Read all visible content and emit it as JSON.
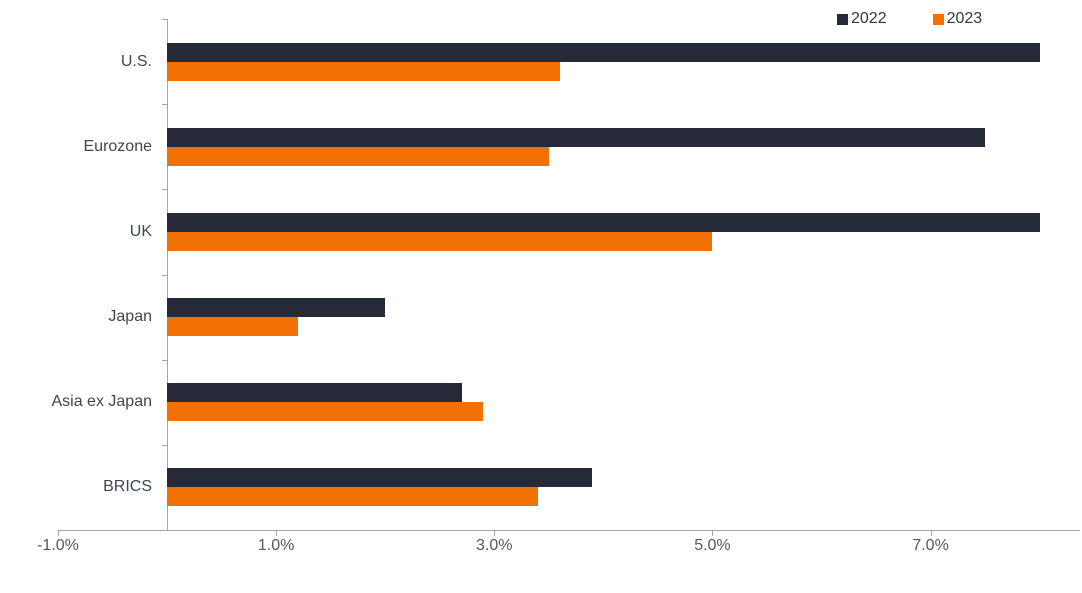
{
  "chart_data": {
    "type": "bar",
    "orientation": "horizontal",
    "title": "",
    "xlabel": "",
    "ylabel": "",
    "categories": [
      "U.S.",
      "Eurozone",
      "UK",
      "Japan",
      "Asia ex Japan",
      "BRICS"
    ],
    "series": [
      {
        "name": "2022",
        "color": "#262A38",
        "values": [
          8.0,
          7.5,
          8.0,
          2.0,
          2.7,
          3.9
        ]
      },
      {
        "name": "2023",
        "color": "#F17105",
        "values": [
          3.6,
          3.5,
          5.0,
          1.2,
          2.9,
          3.4
        ]
      }
    ],
    "x_axis": {
      "unit": "%",
      "min": -1.0,
      "max": 8.37,
      "tick_values": [
        -1.0,
        1.0,
        3.0,
        5.0,
        7.0
      ],
      "tick_labels": [
        "-1.0%",
        "1.0%",
        "3.0%",
        "5.0%",
        "7.0%"
      ]
    },
    "legend": {
      "position": "top-right"
    },
    "grid": false,
    "colors": {
      "bar_2022": "#262A38",
      "bar_2023": "#F17105",
      "axis_line": "#A6A6A6",
      "category_text": "#3F474E",
      "tick_text": "#54585C",
      "legend_text": "#33373D"
    }
  }
}
